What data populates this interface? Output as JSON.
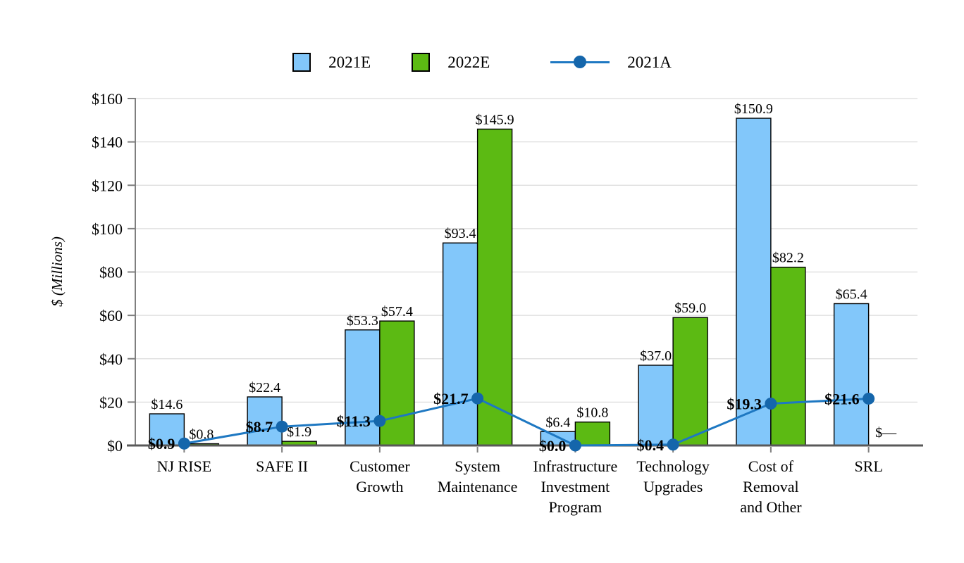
{
  "figure": {
    "background": "#ffffff",
    "colors": {
      "bar_2021E": "#82C7FA",
      "bar_2022E": "#5CBA13",
      "bar_stroke": "#000000",
      "line_2021A": "#1E78C2",
      "marker_2021A": "#1566AB",
      "gridline": "#DCDCDC",
      "y_axis": "#7F7F7F",
      "x_axis": "#595959",
      "text": "#000000"
    }
  },
  "legend": {
    "items": [
      {
        "label": "2021E",
        "swatch": "blue-square"
      },
      {
        "label": "2022E",
        "swatch": "green-square"
      },
      {
        "label": "2021A",
        "swatch": "line-with-marker"
      }
    ],
    "position": "top-center"
  },
  "chart_data": {
    "type": "bar",
    "subtype": "grouped bars with overlaid line series",
    "title": "",
    "xlabel": "",
    "ylabel": "$ (Millions)",
    "ylim": [
      0,
      160
    ],
    "ytick_step": 20,
    "ytick_labels": [
      "$0",
      "$20",
      "$40",
      "$60",
      "$80",
      "$100",
      "$120",
      "$140",
      "$160"
    ],
    "grid": true,
    "legend_position": "top",
    "categories": [
      "NJ RISE",
      "SAFE II",
      "Customer Growth",
      "System Maintenance",
      "Infrastructure Investment Program",
      "Technology Upgrades",
      "Cost of Removal and Other",
      "SRL"
    ],
    "category_label_lines": [
      [
        "NJ RISE"
      ],
      [
        "SAFE II"
      ],
      [
        "Customer",
        "Growth"
      ],
      [
        "System",
        "Maintenance"
      ],
      [
        "Infrastructure",
        "Investment",
        "Program"
      ],
      [
        "Technology",
        "Upgrades"
      ],
      [
        "Cost of",
        "Removal",
        "and Other"
      ],
      [
        "SRL"
      ]
    ],
    "series": [
      {
        "name": "2021E",
        "render": "bar",
        "color": "#82C7FA",
        "values": [
          14.6,
          22.4,
          53.3,
          93.4,
          6.4,
          37.0,
          150.9,
          65.4
        ],
        "labels": [
          "$14.6",
          "$22.4",
          "$53.3",
          "$93.4",
          "$6.4",
          "$37.0",
          "$150.9",
          "$65.4"
        ]
      },
      {
        "name": "2022E",
        "render": "bar",
        "color": "#5CBA13",
        "values": [
          0.8,
          1.9,
          57.4,
          145.9,
          10.8,
          59.0,
          82.2,
          0
        ],
        "labels": [
          "$0.8",
          "$1.9",
          "$57.4",
          "$145.9",
          "$10.8",
          "$59.0",
          "$82.2",
          "$—"
        ]
      },
      {
        "name": "2021A",
        "render": "line",
        "color": "#1E78C2",
        "marker_color": "#1566AB",
        "values": [
          0.9,
          8.7,
          11.3,
          21.7,
          0.0,
          0.4,
          19.3,
          21.6
        ],
        "labels": [
          "$0.9",
          "$8.7",
          "$11.3",
          "$21.7",
          "$0.0",
          "$0.4",
          "$19.3",
          "$21.6"
        ]
      }
    ]
  }
}
